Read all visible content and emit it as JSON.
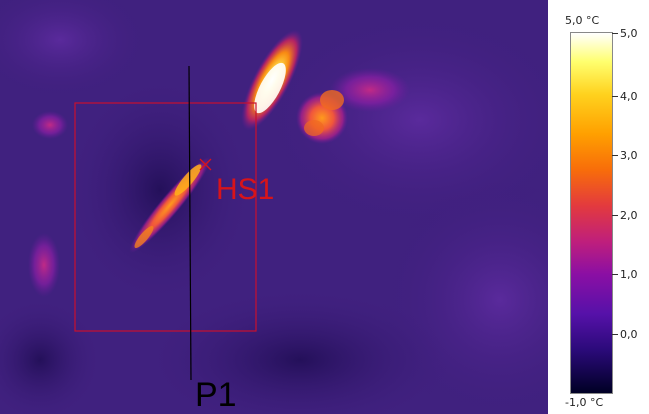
{
  "image": {
    "hotspot_label": "HS1",
    "profile_label": "P1"
  },
  "scale": {
    "top_label": "5,0 °C",
    "bottom_label": "-1,0 °C",
    "ticks": [
      "5,0",
      "4,0",
      "3,0",
      "2,0",
      "1,0",
      "0,0"
    ],
    "colors": [
      "#ffffff",
      "#ffff6e",
      "#ffd21e",
      "#ffa000",
      "#f86d0a",
      "#e33a3e",
      "#bf1f7c",
      "#8b0fa4",
      "#5611a9",
      "#2b0a7a",
      "#000024"
    ]
  },
  "overlay_colors": {
    "measurement_box": "#c8102e",
    "profile_line": "#000000"
  }
}
